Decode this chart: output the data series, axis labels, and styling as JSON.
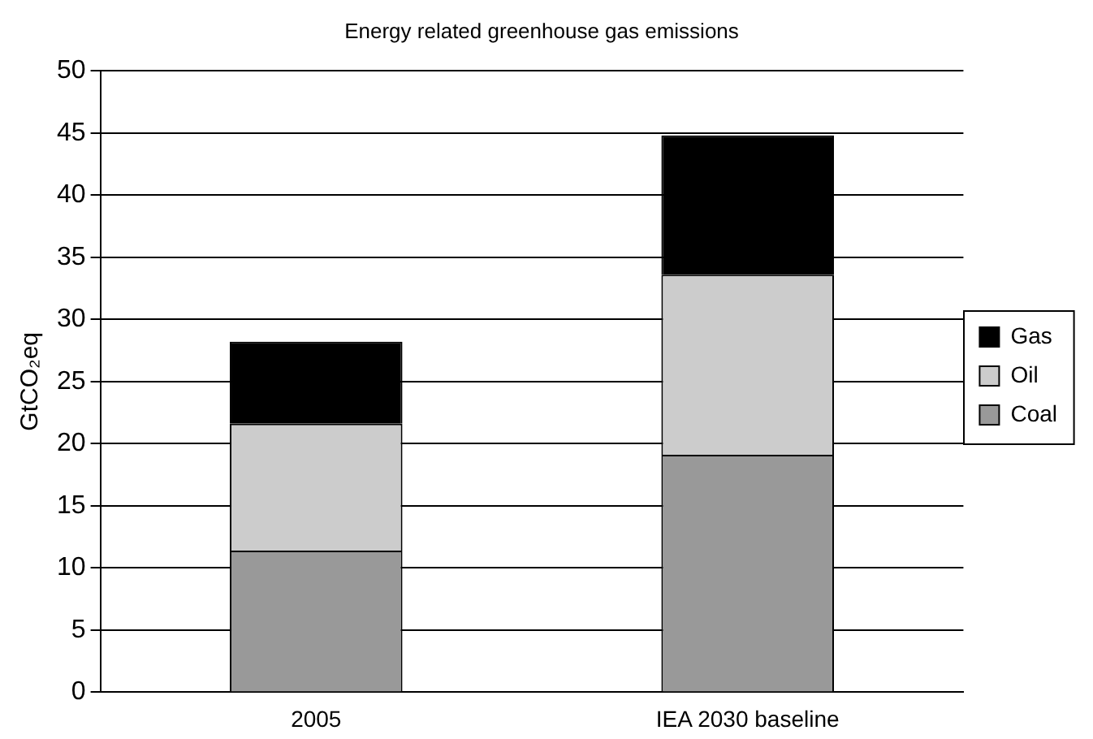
{
  "chart_data": {
    "type": "bar",
    "title": "Energy related greenhouse gas emissions",
    "ylabel": "GtCO₂eq",
    "categories": [
      "2005",
      "IEA 2030 baseline"
    ],
    "stacked": true,
    "series": [
      {
        "name": "Coal",
        "color": "#999999",
        "values": [
          11.4,
          19.1
        ]
      },
      {
        "name": "Oil",
        "color": "#cccccc",
        "values": [
          10.2,
          14.5
        ]
      },
      {
        "name": "Gas",
        "color": "#000000",
        "values": [
          6.6,
          11.2
        ]
      }
    ],
    "ylim": [
      0,
      50
    ],
    "yticks": [
      0,
      5,
      10,
      15,
      20,
      25,
      30,
      35,
      40,
      45,
      50
    ],
    "grid": "y",
    "legend": "right"
  }
}
